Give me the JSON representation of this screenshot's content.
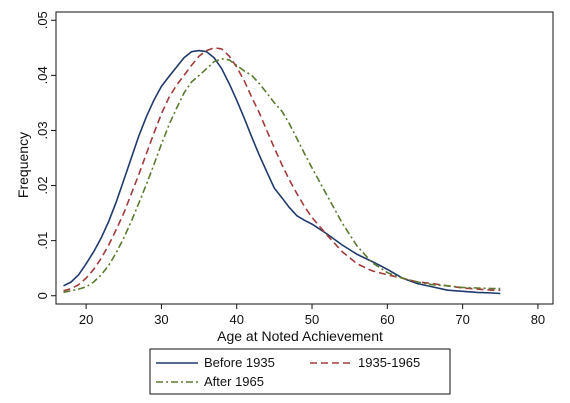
{
  "chart_data": {
    "type": "line",
    "xlabel": "Age at Noted Achievement",
    "ylabel": "Frequency",
    "xlim": [
      16,
      82
    ],
    "ylim": [
      -0.0015,
      0.0515
    ],
    "xticks": [
      20,
      30,
      40,
      50,
      60,
      70,
      80
    ],
    "yticks": [
      0,
      0.01,
      0.02,
      0.03,
      0.04,
      0.05
    ],
    "ytick_labels": [
      "0",
      ".01",
      ".02",
      ".03",
      ".04",
      ".05"
    ],
    "grid": false,
    "legend_position": "bottom",
    "series": [
      {
        "name": "Before 1935",
        "color": "#1f3a6b",
        "dash": "solid",
        "x": [
          17,
          18,
          19,
          20,
          21,
          22,
          23,
          24,
          25,
          26,
          27,
          28,
          29,
          30,
          31,
          32,
          33,
          34,
          35,
          36,
          37,
          38,
          39,
          40,
          41,
          42,
          43,
          44,
          45,
          46,
          47,
          48,
          49,
          50,
          52,
          54,
          56,
          58,
          60,
          62,
          64,
          66,
          68,
          70,
          72,
          74,
          75
        ],
        "y": [
          0.0018,
          0.0025,
          0.0038,
          0.0058,
          0.008,
          0.0105,
          0.0135,
          0.017,
          0.021,
          0.025,
          0.029,
          0.0325,
          0.0355,
          0.038,
          0.0398,
          0.0415,
          0.0432,
          0.0443,
          0.0445,
          0.0443,
          0.0432,
          0.0412,
          0.0385,
          0.0355,
          0.0322,
          0.0288,
          0.0255,
          0.0225,
          0.0195,
          0.0178,
          0.016,
          0.0145,
          0.0137,
          0.013,
          0.0112,
          0.0092,
          0.0075,
          0.0062,
          0.0048,
          0.0032,
          0.0022,
          0.0016,
          0.001,
          0.0008,
          0.0006,
          0.0005,
          0.0004
        ]
      },
      {
        "name": "1935-1965",
        "color": "#a33a3a",
        "dash": "dashed",
        "x": [
          17,
          18,
          19,
          20,
          21,
          22,
          23,
          24,
          25,
          26,
          27,
          28,
          29,
          30,
          31,
          32,
          33,
          34,
          35,
          36,
          37,
          38,
          39,
          40,
          41,
          42,
          43,
          44,
          45,
          46,
          47,
          48,
          49,
          50,
          52,
          54,
          56,
          58,
          60,
          62,
          64,
          66,
          68,
          70,
          72,
          74,
          75
        ],
        "y": [
          0.0009,
          0.0013,
          0.002,
          0.0032,
          0.0048,
          0.0068,
          0.0092,
          0.012,
          0.015,
          0.0185,
          0.022,
          0.0258,
          0.0295,
          0.033,
          0.036,
          0.0382,
          0.04,
          0.0418,
          0.0435,
          0.0445,
          0.045,
          0.0448,
          0.0435,
          0.0415,
          0.039,
          0.036,
          0.0332,
          0.03,
          0.0268,
          0.0238,
          0.021,
          0.0185,
          0.0162,
          0.0142,
          0.011,
          0.008,
          0.0058,
          0.0045,
          0.0038,
          0.0032,
          0.0025,
          0.0022,
          0.0018,
          0.0014,
          0.0012,
          0.001,
          0.001
        ]
      },
      {
        "name": "After 1965",
        "color": "#5a7a2e",
        "dash": "dashdot",
        "x": [
          17,
          18,
          19,
          20,
          21,
          22,
          23,
          24,
          25,
          26,
          27,
          28,
          29,
          30,
          31,
          32,
          33,
          34,
          35,
          36,
          37,
          38,
          39,
          40,
          41,
          42,
          43,
          44,
          45,
          46,
          47,
          48,
          49,
          50,
          52,
          54,
          56,
          58,
          60,
          62,
          64,
          66,
          68,
          70,
          72,
          74,
          75
        ],
        "y": [
          0.0006,
          0.0009,
          0.0012,
          0.0016,
          0.0025,
          0.0038,
          0.0055,
          0.0078,
          0.0105,
          0.0135,
          0.0168,
          0.0202,
          0.0238,
          0.0275,
          0.031,
          0.034,
          0.0368,
          0.0388,
          0.04,
          0.0412,
          0.0425,
          0.043,
          0.0428,
          0.0418,
          0.0408,
          0.04,
          0.0385,
          0.0368,
          0.035,
          0.0335,
          0.0312,
          0.0285,
          0.0258,
          0.0232,
          0.0182,
          0.0132,
          0.009,
          0.006,
          0.0042,
          0.0032,
          0.0025,
          0.002,
          0.0018,
          0.0015,
          0.0014,
          0.0013,
          0.0013
        ]
      }
    ]
  }
}
